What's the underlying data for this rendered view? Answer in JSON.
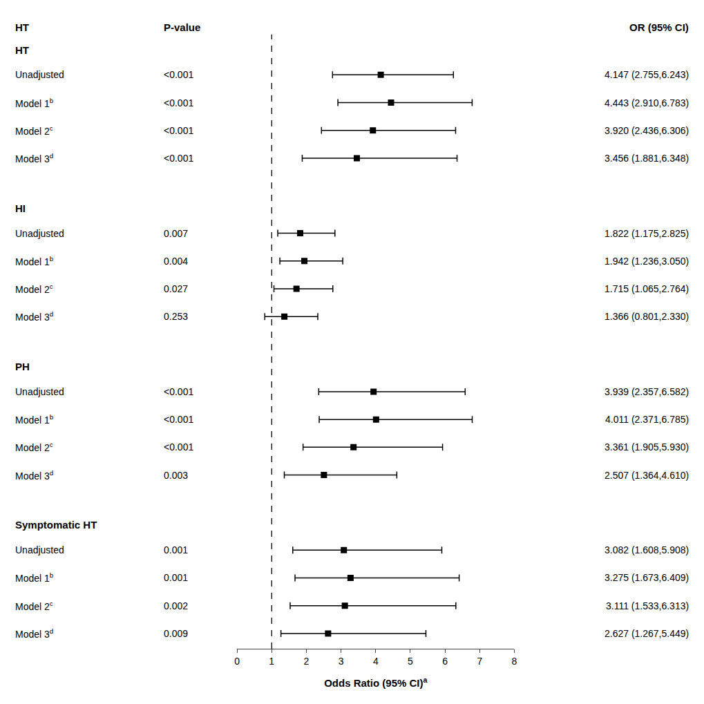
{
  "chart_data": {
    "type": "forest",
    "xlabel": "Odds Ratio (95% CI)",
    "xlabel_superscript": "a",
    "column_headers": {
      "label": "HT",
      "pvalue": "P-value",
      "value": "OR (95% CI)"
    },
    "xlim": [
      0,
      8
    ],
    "xticks": [
      0,
      1,
      2,
      3,
      4,
      5,
      6,
      7,
      8
    ],
    "grid": false,
    "color": "#000000",
    "marker": "square",
    "reference": {
      "x": 1.0,
      "line_style": "dashed"
    },
    "groups": [
      {
        "header": "HT",
        "rows": [
          {
            "label": "Unadjusted",
            "pvalue": "<0.001",
            "value": 4.147,
            "ci_low": 2.755,
            "ci_high": 6.243,
            "value_label": "4.147 (2.755,6.243)"
          },
          {
            "label": "Model 1",
            "superscript": "b",
            "pvalue": "<0.001",
            "value": 4.443,
            "ci_low": 2.91,
            "ci_high": 6.783,
            "value_label": "4.443 (2.910,6.783)"
          },
          {
            "label": "Model 2",
            "superscript": "c",
            "pvalue": "<0.001",
            "value": 3.92,
            "ci_low": 2.436,
            "ci_high": 6.306,
            "value_label": "3.920 (2.436,6.306)"
          },
          {
            "label": "Model 3",
            "superscript": "d",
            "pvalue": "<0.001",
            "value": 3.456,
            "ci_low": 1.881,
            "ci_high": 6.348,
            "value_label": "3.456 (1.881,6.348)"
          }
        ]
      },
      {
        "header": "HI",
        "rows": [
          {
            "label": "Unadjusted",
            "pvalue": "0.007",
            "value": 1.822,
            "ci_low": 1.175,
            "ci_high": 2.825,
            "value_label": "1.822 (1.175,2.825)"
          },
          {
            "label": "Model 1",
            "superscript": "b",
            "pvalue": "0.004",
            "value": 1.942,
            "ci_low": 1.236,
            "ci_high": 3.05,
            "value_label": "1.942 (1.236,3.050)"
          },
          {
            "label": "Model 2",
            "superscript": "c",
            "pvalue": "0.027",
            "value": 1.715,
            "ci_low": 1.065,
            "ci_high": 2.764,
            "value_label": "1.715 (1.065,2.764)"
          },
          {
            "label": "Model 3",
            "superscript": "d",
            "pvalue": "0.253",
            "value": 1.366,
            "ci_low": 0.801,
            "ci_high": 2.33,
            "value_label": "1.366 (0.801,2.330)"
          }
        ]
      },
      {
        "header": "PH",
        "rows": [
          {
            "label": "Unadjusted",
            "pvalue": "<0.001",
            "value": 3.939,
            "ci_low": 2.357,
            "ci_high": 6.582,
            "value_label": "3.939 (2.357,6.582)"
          },
          {
            "label": "Model 1",
            "superscript": "b",
            "pvalue": "<0.001",
            "value": 4.011,
            "ci_low": 2.371,
            "ci_high": 6.785,
            "value_label": "4.011 (2.371,6.785)"
          },
          {
            "label": "Model 2",
            "superscript": "c",
            "pvalue": "<0.001",
            "value": 3.361,
            "ci_low": 1.905,
            "ci_high": 5.93,
            "value_label": "3.361 (1.905,5.930)"
          },
          {
            "label": "Model 3",
            "superscript": "d",
            "pvalue": "0.003",
            "value": 2.507,
            "ci_low": 1.364,
            "ci_high": 4.61,
            "value_label": "2.507 (1.364,4.610)"
          }
        ]
      },
      {
        "header": "Symptomatic HT",
        "rows": [
          {
            "label": "Unadjusted",
            "pvalue": "0.001",
            "value": 3.082,
            "ci_low": 1.608,
            "ci_high": 5.908,
            "value_label": "3.082 (1.608,5.908)"
          },
          {
            "label": "Model 1",
            "superscript": "b",
            "pvalue": "0.001",
            "value": 3.275,
            "ci_low": 1.673,
            "ci_high": 6.409,
            "value_label": "3.275 (1.673,6.409)"
          },
          {
            "label": "Model 2",
            "superscript": "c",
            "pvalue": "0.002",
            "value": 3.111,
            "ci_low": 1.533,
            "ci_high": 6.313,
            "value_label": "3.111 (1.533,6.313)"
          },
          {
            "label": "Model 3",
            "superscript": "d",
            "pvalue": "0.009",
            "value": 2.627,
            "ci_low": 1.267,
            "ci_high": 5.449,
            "value_label": "2.627 (1.267,5.449)"
          }
        ]
      }
    ]
  }
}
